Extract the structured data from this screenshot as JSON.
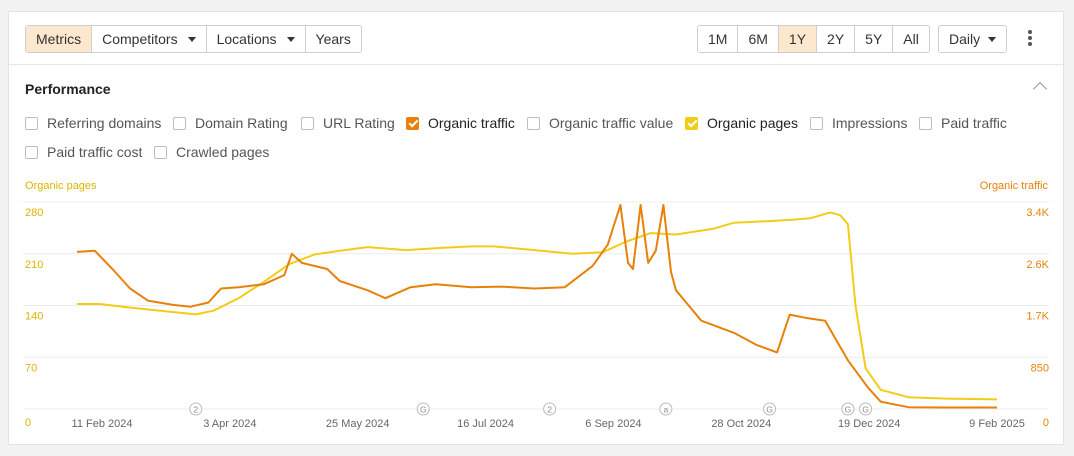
{
  "toolbar": {
    "tabs": [
      {
        "label": "Metrics",
        "active": true,
        "dropdown": false
      },
      {
        "label": "Competitors",
        "active": false,
        "dropdown": true
      },
      {
        "label": "Locations",
        "active": false,
        "dropdown": true
      },
      {
        "label": "Years",
        "active": false,
        "dropdown": false
      }
    ],
    "ranges": [
      {
        "label": "1M",
        "active": false
      },
      {
        "label": "6M",
        "active": false
      },
      {
        "label": "1Y",
        "active": true
      },
      {
        "label": "2Y",
        "active": false
      },
      {
        "label": "5Y",
        "active": false
      },
      {
        "label": "All",
        "active": false
      }
    ],
    "interval": "Daily",
    "more_icon": "kebab-icon"
  },
  "performance": {
    "title": "Performance",
    "collapse_icon": "chevron-up-icon",
    "metrics": [
      {
        "label": "Referring domains",
        "checked": false
      },
      {
        "label": "Domain Rating",
        "checked": false
      },
      {
        "label": "URL Rating",
        "checked": false
      },
      {
        "label": "Organic traffic",
        "checked": true,
        "color": "#e8810a"
      },
      {
        "label": "Organic traffic value",
        "checked": false
      },
      {
        "label": "Organic pages",
        "checked": true,
        "color": "#f2cc16"
      },
      {
        "label": "Impressions",
        "checked": false
      },
      {
        "label": "Paid traffic",
        "checked": false
      },
      {
        "label": "Paid traffic cost",
        "checked": false
      },
      {
        "label": "Crawled pages",
        "checked": false
      }
    ]
  },
  "chart_data": {
    "type": "line",
    "left_axis_title": "Organic pages",
    "right_axis_title": "Organic traffic",
    "left_ticks": [
      "0",
      "70",
      "140",
      "210",
      "280"
    ],
    "right_ticks": [
      "0",
      "850",
      "1.7K",
      "2.6K",
      "3.4K"
    ],
    "ylim_left": [
      0,
      280
    ],
    "ylim_right": [
      0,
      3400
    ],
    "x_tick_labels": [
      "11 Feb 2024",
      "3 Apr 2024",
      "25 May 2024",
      "16 Jul 2024",
      "6 Sep 2024",
      "28 Oct 2024",
      "19 Dec 2024",
      "9 Feb 2025"
    ],
    "x_range": [
      "2024-02-11",
      "2025-02-09"
    ],
    "annotations": [
      {
        "label": "2",
        "date": "2024-03-29"
      },
      {
        "label": "G",
        "date": "2024-06-27"
      },
      {
        "label": "2",
        "date": "2024-08-16"
      },
      {
        "label": "a",
        "date": "2024-10-01"
      },
      {
        "label": "G",
        "date": "2024-11-11"
      },
      {
        "label": "G",
        "date": "2024-12-12"
      },
      {
        "label": "G",
        "date": "2024-12-19"
      }
    ],
    "series": [
      {
        "name": "Organic pages",
        "axis": "left",
        "color": "#f2cc16",
        "x": [
          "2024-02-11",
          "2024-02-20",
          "2024-03-01",
          "2024-03-15",
          "2024-03-29",
          "2024-04-05",
          "2024-04-15",
          "2024-04-25",
          "2024-05-05",
          "2024-05-15",
          "2024-05-25",
          "2024-06-05",
          "2024-06-20",
          "2024-07-05",
          "2024-07-16",
          "2024-07-25",
          "2024-08-10",
          "2024-08-25",
          "2024-09-06",
          "2024-09-15",
          "2024-09-25",
          "2024-10-05",
          "2024-10-20",
          "2024-10-28",
          "2024-11-10",
          "2024-11-20",
          "2024-11-27",
          "2024-12-05",
          "2024-12-09",
          "2024-12-12",
          "2024-12-15",
          "2024-12-19",
          "2024-12-25",
          "2025-01-05",
          "2025-01-20",
          "2025-02-09"
        ],
        "y": [
          142,
          142,
          138,
          133,
          128,
          133,
          150,
          172,
          196,
          209,
          214,
          219,
          215,
          218,
          220,
          220,
          215,
          210,
          212,
          226,
          238,
          236,
          244,
          252,
          254,
          256,
          258,
          266,
          262,
          250,
          140,
          55,
          26,
          16,
          14,
          13
        ]
      },
      {
        "name": "Organic traffic",
        "axis": "right",
        "color": "#e8810a",
        "x": [
          "2024-02-11",
          "2024-02-18",
          "2024-02-25",
          "2024-03-03",
          "2024-03-10",
          "2024-03-20",
          "2024-03-27",
          "2024-04-03",
          "2024-04-08",
          "2024-04-15",
          "2024-04-25",
          "2024-05-03",
          "2024-05-06",
          "2024-05-10",
          "2024-05-20",
          "2024-05-25",
          "2024-06-05",
          "2024-06-12",
          "2024-06-22",
          "2024-07-02",
          "2024-07-16",
          "2024-07-28",
          "2024-08-10",
          "2024-08-22",
          "2024-09-02",
          "2024-09-08",
          "2024-09-13",
          "2024-09-16",
          "2024-09-18",
          "2024-09-21",
          "2024-09-24",
          "2024-09-27",
          "2024-09-30",
          "2024-10-03",
          "2024-10-05",
          "2024-10-08",
          "2024-10-15",
          "2024-10-28",
          "2024-11-06",
          "2024-11-14",
          "2024-11-19",
          "2024-11-25",
          "2024-12-03",
          "2024-12-12",
          "2024-12-20",
          "2024-12-25",
          "2025-01-05",
          "2025-01-20",
          "2025-02-09"
        ],
        "y": [
          2580,
          2600,
          2300,
          1980,
          1780,
          1710,
          1680,
          1750,
          1980,
          2000,
          2050,
          2200,
          2550,
          2400,
          2300,
          2100,
          1950,
          1820,
          2000,
          2050,
          2000,
          2010,
          1980,
          2000,
          2350,
          2700,
          3350,
          2400,
          2300,
          3350,
          2400,
          2600,
          3350,
          2250,
          1950,
          1800,
          1450,
          1250,
          1050,
          930,
          1550,
          1500,
          1450,
          800,
          350,
          120,
          30,
          25,
          25
        ]
      }
    ]
  }
}
